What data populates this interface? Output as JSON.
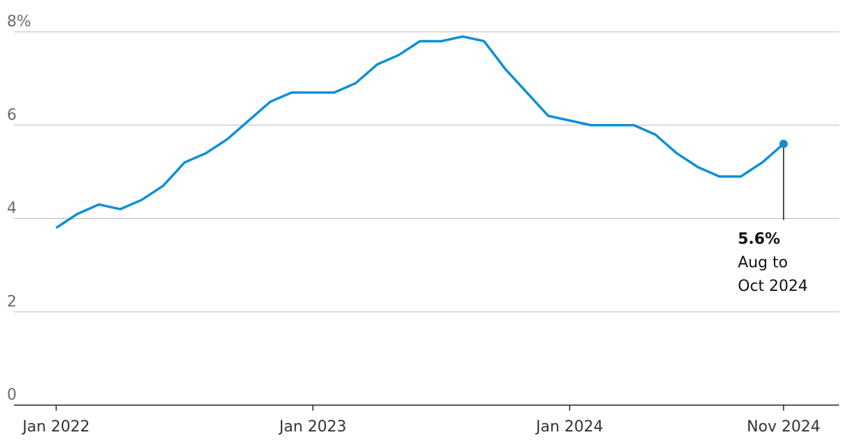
{
  "chart_data": {
    "type": "line",
    "color": "#0d8fd6",
    "categories": [
      "Jan 2022",
      null,
      null,
      null,
      null,
      null,
      null,
      null,
      null,
      null,
      null,
      null,
      "Jan 2023",
      null,
      null,
      null,
      null,
      null,
      null,
      null,
      null,
      null,
      null,
      null,
      "Jan 2024",
      null,
      null,
      null,
      null,
      null,
      null,
      null,
      null,
      null,
      "Nov 2024"
    ],
    "values": [
      3.8,
      4.1,
      4.3,
      4.2,
      4.4,
      4.7,
      5.2,
      5.4,
      5.7,
      6.1,
      6.5,
      6.7,
      6.7,
      6.7,
      6.9,
      7.3,
      7.5,
      7.8,
      7.8,
      7.9,
      7.8,
      7.2,
      6.7,
      6.2,
      6.1,
      6.0,
      6.0,
      6.0,
      5.8,
      5.4,
      5.1,
      4.9,
      4.9,
      5.2,
      5.6
    ],
    "value_labels": [
      null,
      null,
      null,
      null,
      null,
      null,
      null,
      null,
      null,
      null,
      null,
      null,
      null,
      null,
      null,
      null,
      null,
      null,
      null,
      null,
      null,
      null,
      null,
      null,
      null,
      null,
      null,
      null,
      null,
      null,
      null,
      null,
      null,
      null,
      "5.6%"
    ],
    "annotation": [
      "Aug to",
      "Oct 2024"
    ],
    "ylim": [
      0,
      8
    ],
    "yticks": [
      0,
      2,
      4,
      6,
      {
        "value": 8,
        "label": "8%"
      }
    ],
    "grid": true
  }
}
